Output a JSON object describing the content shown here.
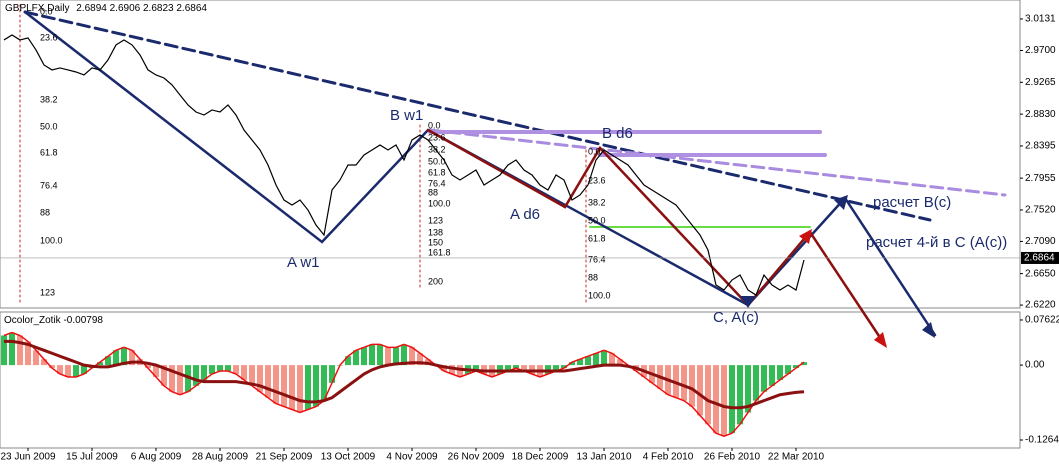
{
  "chart_data": [
    {
      "type": "line",
      "title": "GBPLFX,Daily",
      "ohlc_header": [
        2.6894,
        2.6906,
        2.6823,
        2.6864
      ],
      "last_price": 2.6864,
      "color": "#000000",
      "categories": [
        null,
        null,
        null,
        "23 Jun 2009",
        null,
        null,
        null,
        null,
        null,
        null,
        null,
        "15 Jul 2009",
        null,
        null,
        null,
        null,
        null,
        null,
        null,
        "6 Aug 2009",
        null,
        null,
        null,
        null,
        null,
        null,
        null,
        "28 Aug 2009",
        null,
        null,
        null,
        null,
        null,
        null,
        null,
        "21 Sep 2009",
        null,
        null,
        null,
        null,
        null,
        null,
        null,
        "13 Oct 2009",
        null,
        null,
        null,
        null,
        null,
        null,
        null,
        "4 Nov 2009",
        null,
        null,
        null,
        null,
        null,
        null,
        null,
        "26 Nov 2009",
        null,
        null,
        null,
        null,
        null,
        null,
        null,
        "18 Dec 2009",
        null,
        null,
        null,
        null,
        null,
        null,
        null,
        "13 Jan 2010",
        null,
        null,
        null,
        null,
        null,
        null,
        null,
        "4 Feb 2010",
        null,
        null,
        null,
        null,
        null,
        null,
        null,
        "26 Feb 2010",
        null,
        null,
        null,
        null,
        null,
        null,
        null,
        "22 Mar 2010",
        null
      ],
      "values": [
        2.9844,
        2.9912,
        2.9844,
        2.9871,
        2.9707,
        2.9502,
        2.9434,
        2.9461,
        2.9434,
        2.9406,
        2.9365,
        2.9461,
        2.9434,
        2.9571,
        2.9776,
        2.9844,
        2.9776,
        2.9639,
        2.9434,
        2.9365,
        2.9324,
        2.9229,
        2.9092,
        2.8955,
        2.8859,
        2.8818,
        2.8887,
        2.8859,
        2.8955,
        2.8818,
        2.8613,
        2.8477,
        2.834,
        2.8135,
        2.7861,
        2.7656,
        2.7588,
        2.7656,
        2.7519,
        2.7314,
        2.7178,
        2.7793,
        2.793,
        2.8135,
        2.8135,
        2.8272,
        2.834,
        2.8408,
        2.834,
        2.8408,
        2.8203,
        2.8477,
        2.8545,
        2.8477,
        2.834,
        2.8203,
        2.7998,
        2.793,
        2.7998,
        2.8066,
        2.7861,
        2.793,
        2.7998,
        2.8135,
        2.8203,
        2.8066,
        2.7998,
        2.7861,
        2.7793,
        2.7998,
        2.793,
        2.7656,
        2.7725,
        2.7861,
        2.8203,
        2.834,
        2.8272,
        2.8203,
        2.8135,
        2.7998,
        2.7861,
        2.7793,
        2.7725,
        2.7656,
        2.7588,
        2.7451,
        2.7314,
        2.7178,
        2.6972,
        2.6494,
        2.6426,
        2.6562,
        2.6631,
        2.6426,
        2.6357,
        2.6631,
        2.6494,
        2.6426,
        2.6494,
        2.6426,
        2.6836
      ],
      "ylim": [
        2.618,
        3.039
      ],
      "yticks": [
        {
          "value": 3.0131,
          "label": "3.0131"
        },
        {
          "value": 2.97,
          "label": "2.9700"
        },
        {
          "value": 2.9265,
          "label": "2.9265"
        },
        {
          "value": 2.883,
          "label": "2.8830"
        },
        {
          "value": 2.8395,
          "label": "2.8395"
        },
        {
          "value": 2.7955,
          "label": "2.7955"
        },
        {
          "value": 2.752,
          "label": "2.7520"
        },
        {
          "value": 2.709,
          "label": "2.7090"
        },
        {
          "value": 2.665,
          "label": "2.6650"
        },
        {
          "value": 2.622,
          "label": "2.6220"
        }
      ],
      "annotations": [
        "A w1",
        "B w1",
        "A d6",
        "B d6",
        "C, A(c)",
        "расчет B(c)",
        "расчет 4-й в С (A(c))"
      ],
      "fib_sets": [
        [
          "0.0",
          "23.6",
          "38.2",
          "50.0",
          "61.8",
          "76.4",
          "88",
          "100.0",
          "123"
        ],
        [
          "0.0",
          "23.6",
          "38.2",
          "50.0",
          "61.8",
          "76.4",
          "88",
          "100.0",
          "123",
          "138",
          "150",
          "161.8",
          "200"
        ],
        [
          "0.0",
          "23.6",
          "38.2",
          "50.0",
          "61.8",
          "76.4",
          "88",
          "100.0"
        ]
      ]
    },
    {
      "type": "bar",
      "title": "Ocolor_Zotik",
      "title_value": -0.00798,
      "up_color": "#33bb55",
      "down_color": "#f4958a",
      "line_color": "#8b1010",
      "values": [
        0.05,
        0.055,
        0.05,
        0.04,
        0.025,
        0.01,
        -0.005,
        -0.015,
        -0.02,
        -0.02,
        -0.015,
        -0.005,
        0.005,
        0.015,
        0.025,
        0.03,
        0.025,
        0.01,
        -0.005,
        -0.02,
        -0.035,
        -0.045,
        -0.05,
        -0.045,
        -0.035,
        -0.025,
        -0.015,
        -0.01,
        -0.01,
        -0.015,
        -0.025,
        -0.035,
        -0.045,
        -0.055,
        -0.065,
        -0.07,
        -0.075,
        -0.08,
        -0.075,
        -0.07,
        -0.06,
        -0.03,
        0.0,
        0.015,
        0.025,
        0.03,
        0.035,
        0.035,
        0.03,
        0.03,
        0.035,
        0.03,
        0.02,
        0.01,
        0.0,
        -0.01,
        -0.015,
        -0.02,
        -0.015,
        -0.01,
        -0.015,
        -0.02,
        -0.015,
        -0.01,
        -0.005,
        -0.01,
        -0.015,
        -0.02,
        -0.015,
        -0.01,
        -0.005,
        0.005,
        0.01,
        0.015,
        0.02,
        0.025,
        0.02,
        0.01,
        0.0,
        -0.01,
        -0.02,
        -0.03,
        -0.04,
        -0.05,
        -0.055,
        -0.06,
        -0.07,
        -0.085,
        -0.1,
        -0.115,
        -0.12,
        -0.115,
        -0.1,
        -0.08,
        -0.06,
        -0.045,
        -0.035,
        -0.025,
        -0.015,
        -0.005,
        0.005
      ],
      "signal": [
        0.04,
        0.04,
        0.038,
        0.035,
        0.03,
        0.025,
        0.02,
        0.015,
        0.01,
        0.005,
        0.0,
        -0.002,
        -0.003,
        -0.003,
        0.0,
        0.003,
        0.005,
        0.005,
        0.003,
        0.0,
        -0.005,
        -0.01,
        -0.015,
        -0.02,
        -0.025,
        -0.028,
        -0.028,
        -0.028,
        -0.028,
        -0.028,
        -0.03,
        -0.032,
        -0.035,
        -0.04,
        -0.045,
        -0.05,
        -0.055,
        -0.06,
        -0.062,
        -0.062,
        -0.06,
        -0.055,
        -0.045,
        -0.035,
        -0.025,
        -0.015,
        -0.008,
        -0.003,
        0.0,
        0.002,
        0.003,
        0.004,
        0.004,
        0.003,
        0.0,
        -0.003,
        -0.005,
        -0.007,
        -0.008,
        -0.009,
        -0.01,
        -0.01,
        -0.01,
        -0.01,
        -0.01,
        -0.01,
        -0.01,
        -0.01,
        -0.01,
        -0.01,
        -0.01,
        -0.008,
        -0.006,
        -0.004,
        -0.002,
        0.0,
        0.0,
        0.0,
        -0.002,
        -0.005,
        -0.01,
        -0.015,
        -0.02,
        -0.025,
        -0.03,
        -0.035,
        -0.04,
        -0.05,
        -0.06,
        -0.065,
        -0.07,
        -0.072,
        -0.072,
        -0.07,
        -0.065,
        -0.06,
        -0.055,
        -0.05,
        -0.048,
        -0.046,
        -0.045
      ],
      "ylim": [
        -0.14,
        0.0897
      ],
      "yticks": [
        0.07622,
        {
          "value": 0,
          "label": "0.00"
        },
        -0.12647
      ]
    }
  ]
}
